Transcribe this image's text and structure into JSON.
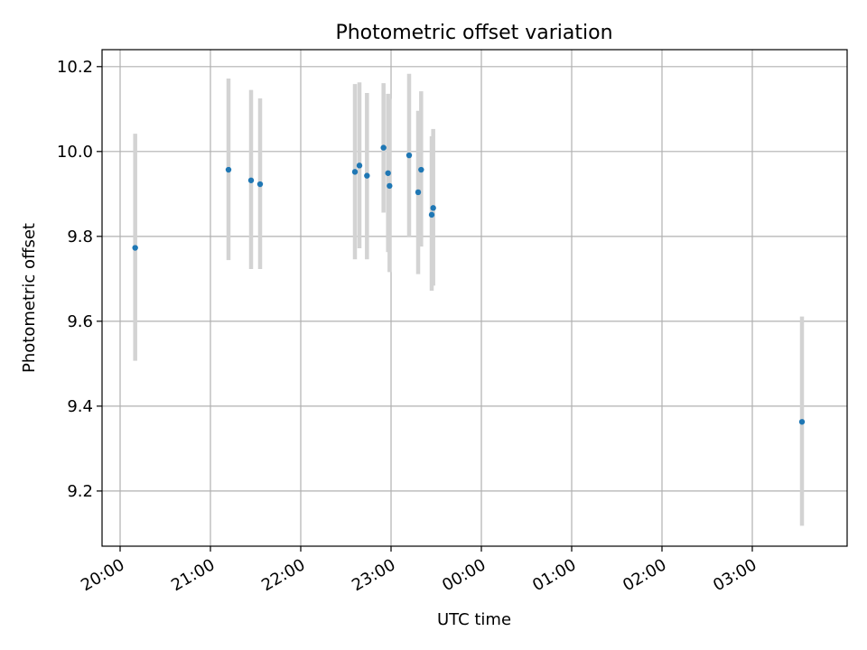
{
  "chart_data": {
    "type": "scatter",
    "title": "Photometric offset variation",
    "xlabel": "UTC time",
    "ylabel": "Photometric offset",
    "x_ticks": [
      "20:00",
      "21:00",
      "22:00",
      "23:00",
      "00:00",
      "01:00",
      "02:00",
      "03:00"
    ],
    "y_ticks": [
      "9.2",
      "9.4",
      "9.6",
      "9.8",
      "10.0",
      "10.2"
    ],
    "xlim": [
      "19:48",
      "04:03"
    ],
    "ylim": [
      9.07,
      10.24
    ],
    "grid": true,
    "point_color": "#1f77b4",
    "errorbar_color": "#d3d3d3",
    "points": [
      {
        "time": "20:10",
        "y": 9.773,
        "ylo": 9.507,
        "yhi": 10.042
      },
      {
        "time": "21:12",
        "y": 9.957,
        "ylo": 9.744,
        "yhi": 10.172
      },
      {
        "time": "21:27",
        "y": 9.932,
        "ylo": 9.723,
        "yhi": 10.145
      },
      {
        "time": "21:33",
        "y": 9.923,
        "ylo": 9.723,
        "yhi": 10.125
      },
      {
        "time": "22:36",
        "y": 9.952,
        "ylo": 9.746,
        "yhi": 10.159
      },
      {
        "time": "22:39",
        "y": 9.967,
        "ylo": 9.772,
        "yhi": 10.163
      },
      {
        "time": "22:44",
        "y": 9.943,
        "ylo": 9.746,
        "yhi": 10.138
      },
      {
        "time": "22:55",
        "y": 10.009,
        "ylo": 9.856,
        "yhi": 10.161
      },
      {
        "time": "22:58",
        "y": 9.949,
        "ylo": 9.763,
        "yhi": 10.136
      },
      {
        "time": "22:59",
        "y": 9.919,
        "ylo": 9.716,
        "yhi": 10.124
      },
      {
        "time": "23:12",
        "y": 9.991,
        "ylo": 9.8,
        "yhi": 10.183
      },
      {
        "time": "23:18",
        "y": 9.904,
        "ylo": 9.711,
        "yhi": 10.096
      },
      {
        "time": "23:20",
        "y": 9.957,
        "ylo": 9.776,
        "yhi": 10.142
      },
      {
        "time": "23:27",
        "y": 9.851,
        "ylo": 9.672,
        "yhi": 10.036
      },
      {
        "time": "23:28",
        "y": 9.867,
        "ylo": 9.684,
        "yhi": 10.053
      },
      {
        "time": "03:33",
        "y": 9.363,
        "ylo": 9.118,
        "yhi": 9.611
      }
    ]
  }
}
